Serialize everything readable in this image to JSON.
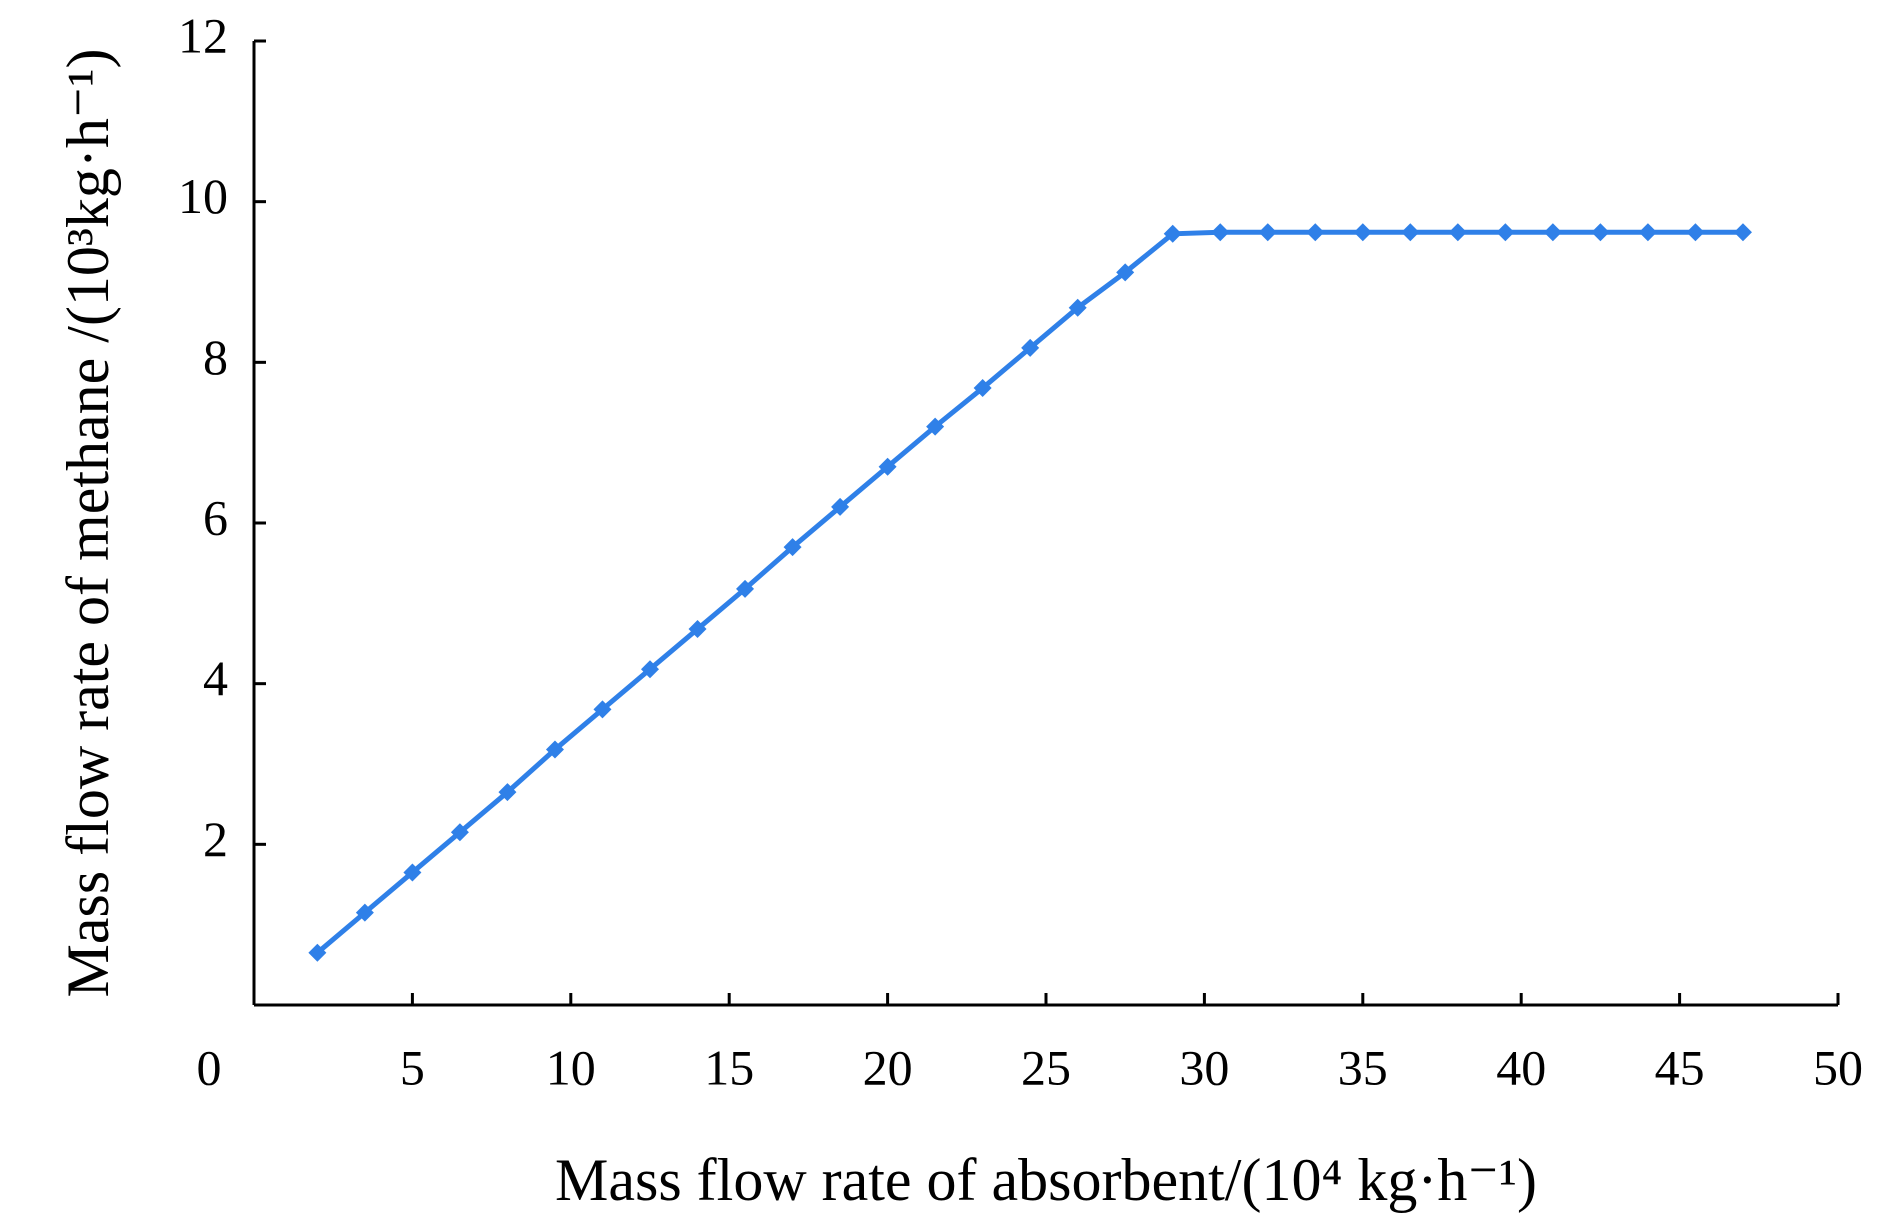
{
  "chart_data": {
    "type": "line",
    "xlabel": "Mass flow rate of absorbent/(10⁴ kg·h⁻¹)",
    "ylabel": "Mass flow rate of methane /(10³kg·h⁻¹)",
    "x": [
      2,
      3.5,
      5,
      6.5,
      8,
      9.5,
      11,
      12.5,
      14,
      15.5,
      17,
      18.5,
      20,
      21.5,
      23,
      24.5,
      26,
      27.5,
      29,
      30.5,
      32,
      33.5,
      35,
      36.5,
      38,
      39.5,
      41,
      42.5,
      44,
      45.5,
      47
    ],
    "series": [
      {
        "color": "#2f80e8",
        "values": [
          0.65,
          1.15,
          1.65,
          2.15,
          2.65,
          3.18,
          3.68,
          4.18,
          4.68,
          5.18,
          5.7,
          6.2,
          6.7,
          7.2,
          7.68,
          8.18,
          8.68,
          9.12,
          9.6,
          9.62,
          9.62,
          9.62,
          9.62,
          9.62,
          9.62,
          9.62,
          9.62,
          9.62,
          9.62,
          9.62,
          9.62
        ]
      }
    ],
    "xlim": [
      0,
      50
    ],
    "xticks": [
      0,
      5,
      10,
      15,
      20,
      25,
      30,
      35,
      40,
      45,
      50
    ],
    "ylim": [
      0,
      12
    ],
    "yticks": [
      2,
      4,
      6,
      8,
      10,
      12
    ]
  }
}
